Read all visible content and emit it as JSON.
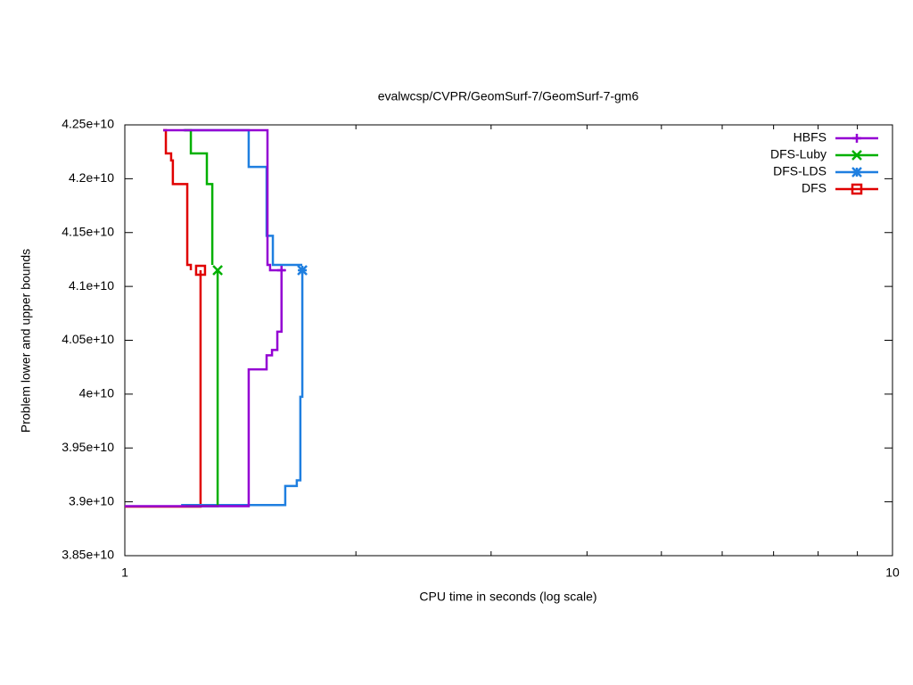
{
  "chart_data": {
    "type": "step",
    "title": "evalwcsp/CVPR/GeomSurf-7/GeomSurf-7-gm6",
    "xlabel": "CPU time in seconds (log scale)",
    "ylabel": "Problem lower and upper bounds",
    "xscale": "log",
    "xlim": [
      1,
      10
    ],
    "xticks": [
      1,
      10
    ],
    "xminorticks": [
      2,
      3,
      4,
      5,
      6,
      7,
      8,
      9
    ],
    "ylim": [
      38500000000,
      42500000000
    ],
    "yticks": [
      {
        "value": 38500000000,
        "label": "3.85e+10"
      },
      {
        "value": 39000000000,
        "label": "3.9e+10"
      },
      {
        "value": 39500000000,
        "label": "3.95e+10"
      },
      {
        "value": 40000000000,
        "label": "4e+10"
      },
      {
        "value": 40500000000,
        "label": "4.05e+10"
      },
      {
        "value": 41000000000,
        "label": "4.1e+10"
      },
      {
        "value": 41500000000,
        "label": "4.15e+10"
      },
      {
        "value": 42000000000,
        "label": "4.2e+10"
      },
      {
        "value": 42500000000,
        "label": "4.25e+10"
      }
    ],
    "legend": "upper right",
    "series": [
      {
        "name": "HBFS",
        "color": "#9400d3",
        "marker": "plus",
        "x_upper": [
          1.122,
          1.534,
          1.546,
          1.618
        ],
        "upper": [
          42450000000,
          41200000000,
          41150000000,
          41150000000
        ],
        "x_lower": [
          1,
          1.45,
          1.53,
          1.555,
          1.58,
          1.6
        ],
        "lower": [
          38960000000,
          40230000000,
          40360000000,
          40410000000,
          40580000000,
          41150000000
        ]
      },
      {
        "name": "DFS-Luby",
        "color": "#00b000",
        "marker": "cross",
        "x_upper": [
          1.196,
          1.219,
          1.279,
          1.3
        ],
        "upper": [
          42450000000,
          42235000000,
          41950000000,
          41200000000
        ],
        "x_lower": [
          1.2,
          1.321
        ],
        "lower": [
          38960000000,
          41150000000
        ]
      },
      {
        "name": "DFS-LDS",
        "color": "#1f7fe0",
        "marker": "star",
        "x_upper": [
          1.192,
          1.45,
          1.53,
          1.559,
          1.703
        ],
        "upper": [
          42450000000,
          42110000000,
          41470000000,
          41200000000,
          41200000000
        ],
        "x_lower": [
          1.184,
          1.618,
          1.675,
          1.693,
          1.703
        ],
        "lower": [
          38970000000,
          39147000000,
          39200000000,
          39975000000,
          41150000000
        ]
      },
      {
        "name": "DFS",
        "color": "#e00000",
        "marker": "box",
        "x_upper": [
          1.122,
          1.131,
          1.149,
          1.155,
          1.206,
          1.219
        ],
        "upper": [
          42450000000,
          42235000000,
          42170000000,
          41950000000,
          41200000000,
          41150000000
        ],
        "x_lower": [
          1,
          1.255
        ],
        "lower": [
          38955000000,
          41150000000
        ]
      }
    ]
  }
}
